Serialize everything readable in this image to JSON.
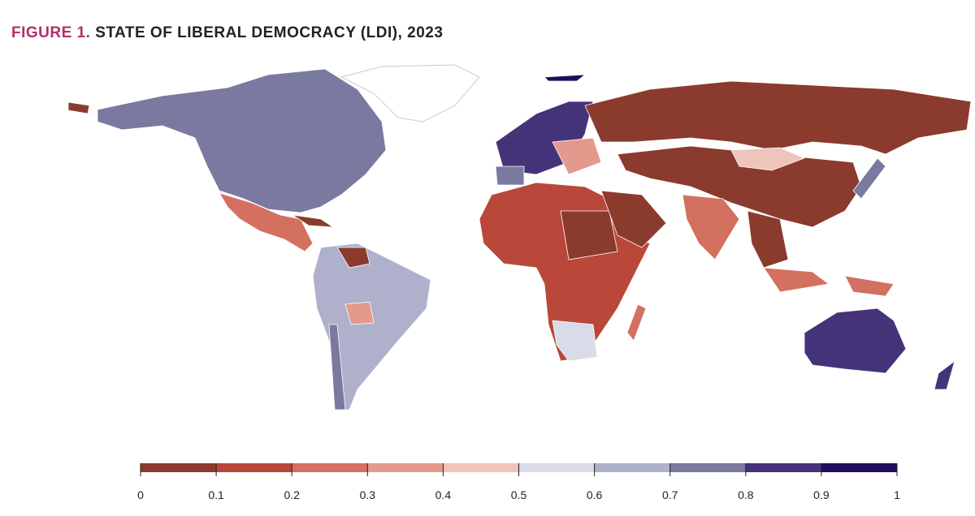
{
  "title_prefix": "FIGURE 1.",
  "title": "STATE OF LIBERAL DEMOCRACY (LDI), 2023",
  "legend": {
    "ticks": [
      0,
      0.1,
      0.2,
      0.3,
      0.4,
      0.5,
      0.6,
      0.7,
      0.8,
      0.9,
      1
    ],
    "colors": [
      "#8b3a2e",
      "#b9473a",
      "#d3705f",
      "#e39a8c",
      "#efc4bb",
      "#d9dbe8",
      "#aeb0cc",
      "#7a799f",
      "#45337a",
      "#1f0d5c"
    ]
  }
}
